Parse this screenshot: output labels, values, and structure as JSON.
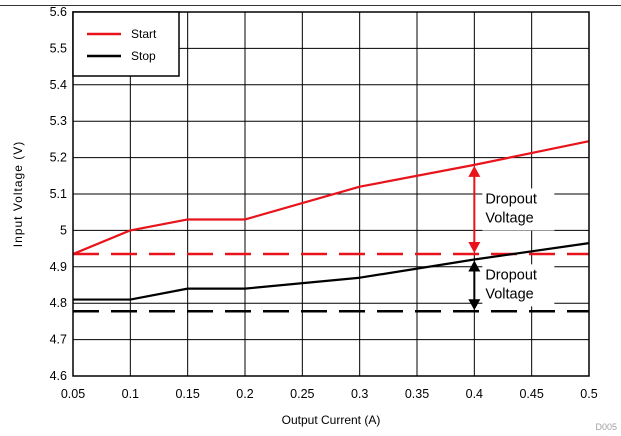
{
  "chart_data": {
    "type": "line",
    "xlabel": "Output Current (A)",
    "ylabel": "Input Voltage (V)",
    "xlim": [
      0.05,
      0.5
    ],
    "ylim": [
      4.6,
      5.6
    ],
    "xticks": [
      "0.05",
      "0.1",
      "0.15",
      "0.2",
      "0.25",
      "0.3",
      "0.35",
      "0.4",
      "0.45",
      "0.5"
    ],
    "yticks": [
      "4.6",
      "4.7",
      "4.8",
      "4.9",
      "5",
      "5.1",
      "5.2",
      "5.3",
      "5.4",
      "5.5",
      "5.6"
    ],
    "grid": true,
    "legend_position": "top-left",
    "series": [
      {
        "name": "Start",
        "color": "#e8131b",
        "x": [
          0.05,
          0.1,
          0.15,
          0.2,
          0.3,
          0.4,
          0.5
        ],
        "y": [
          4.935,
          5.0,
          5.03,
          5.03,
          5.12,
          5.18,
          5.245
        ]
      },
      {
        "name": "Stop",
        "color": "#000000",
        "x": [
          0.05,
          0.1,
          0.15,
          0.2,
          0.3,
          0.4,
          0.5
        ],
        "y": [
          4.81,
          4.81,
          4.84,
          4.84,
          4.87,
          4.92,
          4.965
        ]
      }
    ],
    "reference_lines": [
      {
        "y": 4.935,
        "color": "#e8131b",
        "style": "dashed"
      },
      {
        "y": 4.778,
        "color": "#000000",
        "style": "dashed"
      }
    ],
    "annotations": [
      {
        "text_lines": [
          "Dropout",
          "Voltage"
        ],
        "x": 0.4,
        "y_from": 4.935,
        "y_to": 5.18,
        "arrow_color": "#e8131b"
      },
      {
        "text_lines": [
          "Dropout",
          "Voltage"
        ],
        "x": 0.4,
        "y_from": 4.778,
        "y_to": 4.92,
        "arrow_color": "#000000"
      }
    ]
  },
  "watermark": "D005"
}
